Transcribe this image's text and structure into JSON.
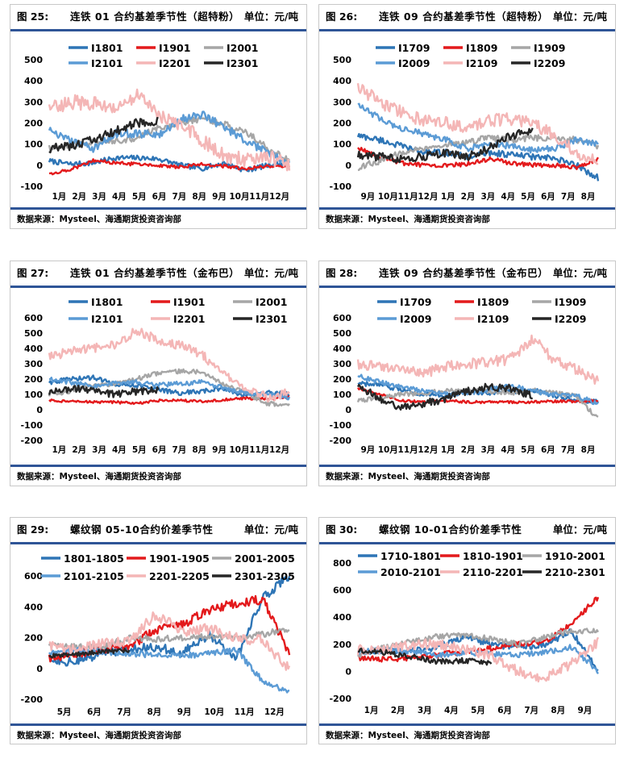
{
  "source": "数据来源：Mysteel、海通期货投资咨询部",
  "panels": [
    {
      "figure": "图 25:",
      "title": "连铁 01 合约基差季节性（超特粉）",
      "unit": "单位：元/吨",
      "chart_data": {
        "type": "line",
        "title": "连铁 01 合约基差季节性（超特粉）",
        "ylim": [
          -100,
          500
        ],
        "yticks": [
          -100,
          0,
          100,
          200,
          300,
          400,
          500
        ],
        "xticks": [
          "1月",
          "2月",
          "3月",
          "4月",
          "5月",
          "6月",
          "7月",
          "8月",
          "9月",
          "10月",
          "11月",
          "12月"
        ],
        "series": [
          {
            "name": "I1801",
            "color": "#2e75b6",
            "values": [
              20,
              5,
              10,
              35,
              35,
              30,
              0,
              -15,
              10,
              -25,
              0,
              10
            ],
            "noise": 12
          },
          {
            "name": "I1901",
            "color": "#e31a1c",
            "values": [
              -40,
              -20,
              25,
              10,
              5,
              0,
              -10,
              5,
              -5,
              -15,
              -5,
              -5
            ],
            "noise": 8
          },
          {
            "name": "I2001",
            "color": "#a6a6a6",
            "values": [
              80,
              100,
              110,
              115,
              130,
              180,
              200,
              220,
              195,
              160,
              80,
              20
            ],
            "noise": 15
          },
          {
            "name": "I2101",
            "color": "#5b9bd5",
            "values": [
              170,
              110,
              80,
              150,
              150,
              145,
              215,
              240,
              180,
              120,
              60,
              0
            ],
            "noise": 20
          },
          {
            "name": "I2201",
            "color": "#f4b6b6",
            "values": [
              270,
              300,
              290,
              280,
              330,
              240,
              200,
              120,
              50,
              20,
              40,
              0
            ],
            "noise": 35
          },
          {
            "name": "I2301",
            "color": "#262626",
            "values": [
              80,
              90,
              120,
              160,
              200,
              210
            ],
            "noise": 20
          }
        ]
      }
    },
    {
      "figure": "图 26:",
      "title": "连铁 09 合约基差季节性（超特粉）",
      "unit": "单位：元/吨",
      "chart_data": {
        "type": "line",
        "title": "连铁 09 合约基差季节性（超特粉）",
        "ylim": [
          -100,
          500
        ],
        "yticks": [
          -100,
          0,
          100,
          200,
          300,
          400,
          500
        ],
        "xticks": [
          "9月",
          "10月",
          "11月",
          "12月",
          "1月",
          "2月",
          "3月",
          "4月",
          "5月",
          "6月",
          "7月",
          "8月"
        ],
        "series": [
          {
            "name": "I1709",
            "color": "#2e75b6",
            "values": [
              140,
              120,
              90,
              60,
              60,
              40,
              60,
              50,
              40,
              30,
              0,
              -60
            ],
            "noise": 15
          },
          {
            "name": "I1809",
            "color": "#e31a1c",
            "values": [
              80,
              40,
              10,
              0,
              0,
              5,
              30,
              10,
              0,
              0,
              -10,
              30
            ],
            "noise": 10
          },
          {
            "name": "I1909",
            "color": "#a6a6a6",
            "values": [
              -10,
              20,
              60,
              80,
              100,
              110,
              130,
              120,
              130,
              130,
              120,
              90
            ],
            "noise": 15
          },
          {
            "name": "I2009",
            "color": "#5b9bd5",
            "values": [
              290,
              220,
              170,
              150,
              120,
              80,
              100,
              90,
              70,
              80,
              120,
              100
            ],
            "noise": 15
          },
          {
            "name": "I2109",
            "color": "#f4b6b6",
            "values": [
              370,
              300,
              250,
              210,
              200,
              180,
              210,
              220,
              200,
              140,
              60,
              20
            ],
            "noise": 30
          },
          {
            "name": "I2209",
            "color": "#262626",
            "values": [
              50,
              40,
              30,
              40,
              60,
              40,
              80,
              140,
              160
            ],
            "noise": 20
          }
        ]
      }
    },
    {
      "figure": "图 27:",
      "title": "连铁 01 合约基差季节性（金布巴）",
      "unit": "单位：元/吨",
      "chart_data": {
        "type": "line",
        "title": "连铁 01 合约基差季节性（金布巴）",
        "ylim": [
          -200,
          600
        ],
        "yticks": [
          -200,
          -100,
          0,
          100,
          200,
          300,
          400,
          500,
          600
        ],
        "xticks": [
          "1月",
          "2月",
          "3月",
          "4月",
          "5月",
          "6月",
          "7月",
          "8月",
          "9月",
          "10月",
          "11月",
          "12月"
        ],
        "series": [
          {
            "name": "I1801",
            "color": "#2e75b6",
            "values": [
              180,
              200,
              210,
              170,
              160,
              130,
              110,
              120,
              140,
              90,
              110,
              100
            ],
            "noise": 15
          },
          {
            "name": "I1901",
            "color": "#e31a1c",
            "values": [
              60,
              55,
              50,
              50,
              40,
              60,
              60,
              55,
              65,
              75,
              70,
              80
            ],
            "noise": 8
          },
          {
            "name": "I2001",
            "color": "#a6a6a6",
            "values": [
              100,
              120,
              160,
              170,
              200,
              240,
              250,
              250,
              160,
              110,
              40,
              30
            ],
            "noise": 15
          },
          {
            "name": "I2101",
            "color": "#5b9bd5",
            "values": [
              200,
              180,
              150,
              170,
              180,
              160,
              170,
              180,
              140,
              110,
              100,
              80
            ],
            "noise": 15
          },
          {
            "name": "I2201",
            "color": "#f4b6b6",
            "values": [
              350,
              380,
              400,
              420,
              520,
              450,
              420,
              360,
              230,
              130,
              80,
              110
            ],
            "noise": 30
          },
          {
            "name": "I2301",
            "color": "#262626",
            "values": [
              110,
              140,
              130,
              100,
              120,
              130
            ],
            "noise": 25
          }
        ]
      }
    },
    {
      "figure": "图 28:",
      "title": "连铁 09 合约基差季节性（金布巴）",
      "unit": "单位：元/吨",
      "chart_data": {
        "type": "line",
        "title": "连铁 09 合约基差季节性（金布巴）",
        "ylim": [
          -200,
          600
        ],
        "yticks": [
          -200,
          -100,
          0,
          100,
          200,
          300,
          400,
          500,
          600
        ],
        "xticks": [
          "9月",
          "10月",
          "11月",
          "12月",
          "1月",
          "2月",
          "3月",
          "4月",
          "5月",
          "6月",
          "7月",
          "8月"
        ],
        "series": [
          {
            "name": "I1709",
            "color": "#2e75b6",
            "values": [
              170,
              160,
              130,
              100,
              90,
              120,
              110,
              120,
              130,
              90,
              60,
              50
            ],
            "noise": 15
          },
          {
            "name": "I1809",
            "color": "#e31a1c",
            "values": [
              140,
              100,
              60,
              50,
              60,
              50,
              50,
              50,
              50,
              55,
              55,
              60
            ],
            "noise": 8
          },
          {
            "name": "I1909",
            "color": "#a6a6a6",
            "values": [
              60,
              80,
              100,
              110,
              120,
              130,
              120,
              110,
              130,
              110,
              90,
              -60
            ],
            "noise": 15
          },
          {
            "name": "I2009",
            "color": "#5b9bd5",
            "values": [
              220,
              180,
              150,
              120,
              100,
              110,
              130,
              160,
              120,
              100,
              90,
              40
            ],
            "noise": 15
          },
          {
            "name": "I2109",
            "color": "#f4b6b6",
            "values": [
              300,
              280,
              260,
              240,
              280,
              300,
              310,
              330,
              470,
              320,
              260,
              180
            ],
            "noise": 35
          },
          {
            "name": "I2209",
            "color": "#262626",
            "values": [
              160,
              70,
              10,
              40,
              70,
              120,
              150,
              140,
              90
            ],
            "noise": 25
          }
        ]
      }
    },
    {
      "figure": "图 29:",
      "title": "螺纹钢 05-10合约价差季节性",
      "unit": "单位：元/吨",
      "chart_data": {
        "type": "line",
        "title": "螺纹钢 05-10合约价差季节性",
        "ylim": [
          -200,
          600
        ],
        "yticks": [
          -200,
          0,
          200,
          400,
          600
        ],
        "xticks": [
          "5月",
          "6月",
          "7月",
          "8月",
          "9月",
          "10月",
          "11月",
          "12月"
        ],
        "series": [
          {
            "name": "1801-1805",
            "color": "#2e75b6",
            "values": [
              60,
              40,
              100,
              120,
              140,
              100,
              220,
              60,
              460,
              600
            ],
            "noise": 30
          },
          {
            "name": "1901-1905",
            "color": "#e31a1c",
            "values": [
              70,
              100,
              120,
              140,
              250,
              280,
              380,
              420,
              450,
              100
            ],
            "noise": 30
          },
          {
            "name": "2001-2005",
            "color": "#a6a6a6",
            "values": [
              160,
              140,
              140,
              200,
              190,
              200,
              210,
              200,
              220,
              260
            ],
            "noise": 20
          },
          {
            "name": "2101-2105",
            "color": "#5b9bd5",
            "values": [
              100,
              120,
              110,
              100,
              80,
              80,
              100,
              120,
              -80,
              -160
            ],
            "noise": 20
          },
          {
            "name": "2201-2205",
            "color": "#f4b6b6",
            "values": [
              140,
              120,
              160,
              180,
              350,
              240,
              260,
              200,
              180,
              0
            ],
            "noise": 35
          },
          {
            "name": "2301-2305",
            "color": "#262626",
            "values": [
              80,
              90,
              110,
              120
            ],
            "noise": 15
          }
        ]
      }
    },
    {
      "figure": "图 30:",
      "title": "螺纹钢 10-01合约价差季节性",
      "unit": "单位：元/吨",
      "chart_data": {
        "type": "line",
        "title": "螺纹钢 10-01合约价差季节性",
        "ylim": [
          -200,
          800
        ],
        "yticks": [
          -200,
          0,
          200,
          400,
          600,
          800
        ],
        "xticks": [
          "1月",
          "2月",
          "3月",
          "4月",
          "5月",
          "6月",
          "7月",
          "8月",
          "9月"
        ],
        "series": [
          {
            "name": "1710-1801",
            "color": "#2e75b6",
            "values": [
              140,
              160,
              150,
              180,
              260,
              200,
              180,
              200,
              300,
              0
            ],
            "noise": 25
          },
          {
            "name": "1810-1901",
            "color": "#e31a1c",
            "values": [
              100,
              90,
              100,
              120,
              150,
              170,
              200,
              220,
              350,
              550
            ],
            "noise": 20
          },
          {
            "name": "1910-2001",
            "color": "#a6a6a6",
            "values": [
              120,
              180,
              220,
              260,
              270,
              240,
              200,
              250,
              300,
              300
            ],
            "noise": 20
          },
          {
            "name": "2010-2101",
            "color": "#5b9bd5",
            "values": [
              140,
              160,
              150,
              120,
              140,
              130,
              120,
              140,
              180,
              0
            ],
            "noise": 20
          },
          {
            "name": "2110-2201",
            "color": "#f4b6b6",
            "values": [
              160,
              150,
              200,
              200,
              160,
              120,
              0,
              -60,
              60,
              220
            ],
            "noise": 40
          },
          {
            "name": "2210-2301",
            "color": "#262626",
            "values": [
              150,
              140,
              110,
              70,
              80,
              60
            ],
            "noise": 20
          }
        ]
      }
    }
  ]
}
